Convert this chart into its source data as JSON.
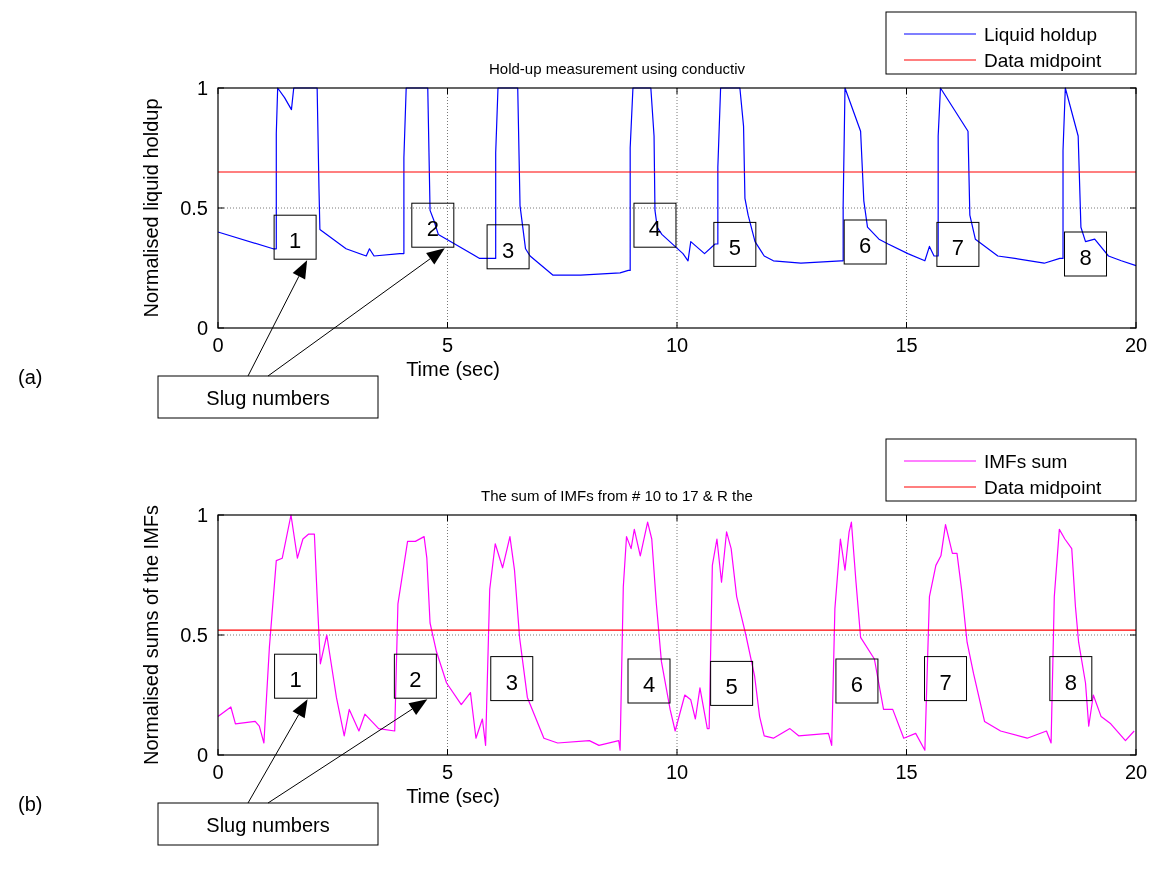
{
  "chart_data": [
    {
      "type": "line",
      "title": "Hold-up measurement using conductiv",
      "xlabel": "Time (sec)",
      "ylabel": "Normalised liquid holdup",
      "xlim": [
        0,
        20
      ],
      "xticks": [
        0,
        5,
        10,
        15,
        20
      ],
      "ylim": [
        0,
        1
      ],
      "yticks": [
        0,
        0.5,
        1
      ],
      "grid": true,
      "legend": "top right",
      "series": [
        {
          "name": "Liquid holdup",
          "color": "#0000ff",
          "x": [
            0,
            1.2,
            1.27,
            1.27,
            1.3,
            1.45,
            1.6,
            1.65,
            2.16,
            2.2,
            2.22,
            2.79,
            3.23,
            3.3,
            3.4,
            3.96,
            4.05,
            4.05,
            4.1,
            4.57,
            4.62,
            4.7,
            4.8,
            4.98,
            5.7,
            6.05,
            6.05,
            6.1,
            6.53,
            6.58,
            6.7,
            6.8,
            7.3,
            7.9,
            8.76,
            8.94,
            8.98,
            8.98,
            9.04,
            9.43,
            9.5,
            9.52,
            9.57,
            9.67,
            10.13,
            10.24,
            10.3,
            10.6,
            10.83,
            10.89,
            10.89,
            10.95,
            11.37,
            11.45,
            11.48,
            11.55,
            11.7,
            11.9,
            12.1,
            12.7,
            13.57,
            13.62,
            13.62,
            13.66,
            14.0,
            14.07,
            14.15,
            14.4,
            14.6,
            15.03,
            15.4,
            15.5,
            15.6,
            15.69,
            15.69,
            15.74,
            16.34,
            16.38,
            16.5,
            16.99,
            17.36,
            18.0,
            18.34,
            18.41,
            18.41,
            18.46,
            18.74,
            18.8,
            18.9,
            19.1,
            19.4,
            19.68,
            20.0
          ],
          "values": [
            0.4,
            0.33,
            0.33,
            0.81,
            1.0,
            0.96,
            0.91,
            1.0,
            1.0,
            0.58,
            0.41,
            0.33,
            0.3,
            0.33,
            0.3,
            0.31,
            0.31,
            0.71,
            1.0,
            1.0,
            0.49,
            0.45,
            0.39,
            0.37,
            0.29,
            0.29,
            0.73,
            1.0,
            1.0,
            0.51,
            0.33,
            0.3,
            0.22,
            0.22,
            0.23,
            0.24,
            0.24,
            0.75,
            1.0,
            1.0,
            0.8,
            0.49,
            0.42,
            0.39,
            0.31,
            0.28,
            0.36,
            0.31,
            0.35,
            0.35,
            0.67,
            1.0,
            1.0,
            0.84,
            0.54,
            0.47,
            0.36,
            0.3,
            0.28,
            0.27,
            0.28,
            0.28,
            0.51,
            1.0,
            0.82,
            0.53,
            0.42,
            0.37,
            0.35,
            0.31,
            0.28,
            0.34,
            0.3,
            0.3,
            0.8,
            1.0,
            0.82,
            0.47,
            0.37,
            0.3,
            0.29,
            0.27,
            0.29,
            0.29,
            0.74,
            1.0,
            0.8,
            0.42,
            0.36,
            0.37,
            0.3,
            0.28,
            0.26
          ]
        },
        {
          "name": "Data midpoint",
          "color": "#ff0000",
          "x": [
            0,
            20
          ],
          "values": [
            0.65,
            0.65
          ]
        }
      ],
      "annotations": [
        "(a)",
        "Slug numbers",
        {
          "text": "1",
          "x": 1.68,
          "y": 0.37
        },
        {
          "text": "2",
          "x": 4.68,
          "y": 0.42
        },
        {
          "text": "3",
          "x": 6.32,
          "y": 0.33
        },
        {
          "text": "4",
          "x": 9.52,
          "y": 0.42
        },
        {
          "text": "5",
          "x": 11.26,
          "y": 0.34
        },
        {
          "text": "6",
          "x": 14.1,
          "y": 0.35
        },
        {
          "text": "7",
          "x": 16.12,
          "y": 0.34
        },
        {
          "text": "8",
          "x": 18.9,
          "y": 0.3
        }
      ]
    },
    {
      "type": "line",
      "title": "The sum of IMFs from # 10 to 17 &  R the",
      "xlabel": "Time (sec)",
      "ylabel": "Normalised sums of the IMFs",
      "xlim": [
        0,
        20
      ],
      "xticks": [
        0,
        5,
        10,
        15,
        20
      ],
      "ylim": [
        0,
        1
      ],
      "yticks": [
        0,
        0.5,
        1
      ],
      "grid": true,
      "legend": "top right",
      "series": [
        {
          "name": "IMFs sum",
          "color": "#ff00ff",
          "x": [
            0,
            0.28,
            0.38,
            0.81,
            0.9,
            1.0,
            1.12,
            1.27,
            1.4,
            1.59,
            1.73,
            1.85,
            1.97,
            2.1,
            2.16,
            2.23,
            2.37,
            2.58,
            2.75,
            2.86,
            3.07,
            3.2,
            3.5,
            3.85,
            3.92,
            4.13,
            4.3,
            4.49,
            4.55,
            4.62,
            4.76,
            4.98,
            5.3,
            5.5,
            5.62,
            5.76,
            5.83,
            5.92,
            6.04,
            6.2,
            6.36,
            6.46,
            6.57,
            6.74,
            7.1,
            7.4,
            8.09,
            8.3,
            8.73,
            8.76,
            8.83,
            8.9,
            9.0,
            9.07,
            9.2,
            9.36,
            9.45,
            9.55,
            9.66,
            9.85,
            9.96,
            10.17,
            10.3,
            10.4,
            10.5,
            10.66,
            10.7,
            10.77,
            10.87,
            10.97,
            11.08,
            11.18,
            11.3,
            11.5,
            11.69,
            11.8,
            11.9,
            12.1,
            12.46,
            12.65,
            13.3,
            13.37,
            13.44,
            13.56,
            13.66,
            13.75,
            13.8,
            13.9,
            14.0,
            14.3,
            14.5,
            14.7,
            14.94,
            15.2,
            15.4,
            15.5,
            15.64,
            15.75,
            15.85,
            16.0,
            16.1,
            16.2,
            16.32,
            16.46,
            16.7,
            17.05,
            17.63,
            18.05,
            18.15,
            18.22,
            18.33,
            18.45,
            18.6,
            18.68,
            18.75,
            18.9,
            18.97,
            19.07,
            19.24,
            19.45,
            19.77,
            19.96
          ],
          "values": [
            0.16,
            0.2,
            0.13,
            0.14,
            0.12,
            0.05,
            0.45,
            0.81,
            0.82,
            1.0,
            0.82,
            0.9,
            0.92,
            0.92,
            0.66,
            0.38,
            0.5,
            0.24,
            0.08,
            0.19,
            0.1,
            0.17,
            0.11,
            0.1,
            0.63,
            0.89,
            0.89,
            0.91,
            0.82,
            0.55,
            0.43,
            0.3,
            0.21,
            0.26,
            0.07,
            0.15,
            0.04,
            0.69,
            0.88,
            0.78,
            0.91,
            0.77,
            0.49,
            0.24,
            0.07,
            0.05,
            0.06,
            0.04,
            0.06,
            0.02,
            0.7,
            0.91,
            0.86,
            0.94,
            0.83,
            0.97,
            0.9,
            0.63,
            0.39,
            0.19,
            0.1,
            0.25,
            0.23,
            0.15,
            0.28,
            0.11,
            0.11,
            0.79,
            0.9,
            0.72,
            0.93,
            0.86,
            0.66,
            0.5,
            0.33,
            0.16,
            0.08,
            0.07,
            0.11,
            0.08,
            0.09,
            0.04,
            0.61,
            0.9,
            0.77,
            0.93,
            0.97,
            0.72,
            0.49,
            0.4,
            0.19,
            0.19,
            0.07,
            0.09,
            0.02,
            0.66,
            0.79,
            0.83,
            0.96,
            0.84,
            0.84,
            0.69,
            0.47,
            0.34,
            0.14,
            0.1,
            0.07,
            0.1,
            0.05,
            0.66,
            0.94,
            0.9,
            0.86,
            0.62,
            0.47,
            0.3,
            0.12,
            0.25,
            0.16,
            0.13,
            0.06,
            0.1
          ]
        },
        {
          "name": "Data midpoint",
          "color": "#ff0000",
          "x": [
            0,
            20
          ],
          "values": [
            0.52,
            0.52
          ]
        }
      ],
      "annotations": [
        "(b)",
        "Slug numbers",
        {
          "text": "1",
          "x": 1.69,
          "y": 0.32
        },
        {
          "text": "2",
          "x": 4.3,
          "y": 0.32
        },
        {
          "text": "3",
          "x": 6.4,
          "y": 0.31
        },
        {
          "text": "4",
          "x": 9.39,
          "y": 0.3
        },
        {
          "text": "5",
          "x": 11.19,
          "y": 0.29
        },
        {
          "text": "6",
          "x": 13.92,
          "y": 0.3
        },
        {
          "text": "7",
          "x": 15.85,
          "y": 0.31
        },
        {
          "text": "8",
          "x": 18.58,
          "y": 0.31
        }
      ]
    }
  ]
}
